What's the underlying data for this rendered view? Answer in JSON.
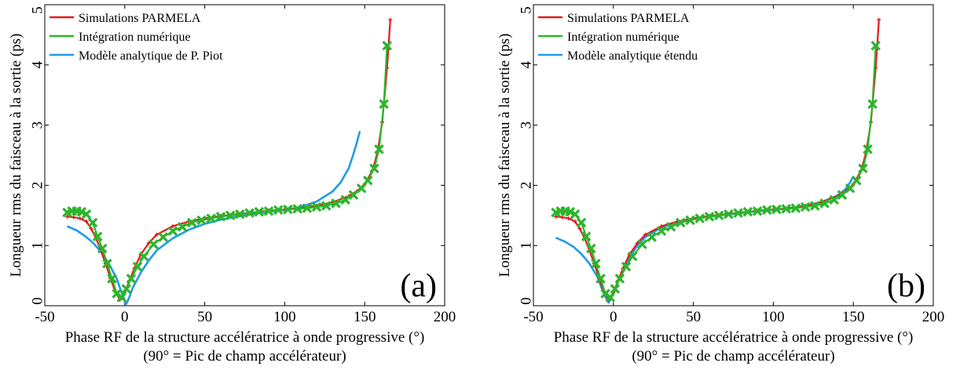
{
  "colors": {
    "parmela": "#e41a1c",
    "integration": "#2cb52c",
    "model": "#1f9be8"
  },
  "chart_data": [
    {
      "type": "line",
      "panel_label": "(a)",
      "ylabel": "Longueur rms du faisceau à la sortie (ps)",
      "xlabel": "Phase RF de la structure accélératrice à onde progressive (°)",
      "xlabel2": "(90° = Pic de champ accélérateur)",
      "xlim": [
        -50,
        200
      ],
      "ylim": [
        0,
        5
      ],
      "xticks": [
        -50,
        0,
        50,
        100,
        150,
        200
      ],
      "yticks": [
        0,
        1,
        2,
        3,
        4,
        5
      ],
      "legend_position": "top-left",
      "series": [
        {
          "name": "Simulations PARMELA",
          "color": "#e41a1c",
          "marker": "plus",
          "x": [
            -36,
            -32,
            -28,
            -24,
            -21,
            -18,
            -15,
            -12,
            -9,
            -6,
            -3,
            0,
            3,
            6,
            10,
            15,
            20,
            30,
            40,
            50,
            60,
            70,
            80,
            90,
            100,
            110,
            120,
            130,
            140,
            145,
            150,
            155,
            158,
            161,
            164,
            166
          ],
          "y": [
            1.48,
            1.47,
            1.45,
            1.4,
            1.28,
            1.12,
            0.92,
            0.7,
            0.46,
            0.24,
            0.1,
            0.22,
            0.42,
            0.62,
            0.85,
            1.04,
            1.18,
            1.32,
            1.4,
            1.45,
            1.49,
            1.52,
            1.55,
            1.58,
            1.6,
            1.62,
            1.66,
            1.72,
            1.82,
            1.9,
            2.02,
            2.25,
            2.55,
            3.05,
            3.95,
            4.75
          ]
        },
        {
          "name": "Intégration numérique",
          "color": "#2cb52c",
          "marker": "x",
          "x": [
            -36,
            -33,
            -30,
            -27,
            -24,
            -20,
            -17,
            -14,
            -11,
            -8,
            -5,
            -2,
            1,
            4,
            8,
            12,
            18,
            24,
            30,
            36,
            42,
            48,
            54,
            60,
            66,
            72,
            78,
            84,
            90,
            96,
            102,
            108,
            114,
            120,
            126,
            132,
            138,
            143,
            148,
            152,
            156,
            159,
            162,
            164
          ],
          "y": [
            1.55,
            1.57,
            1.57,
            1.56,
            1.52,
            1.38,
            1.15,
            0.95,
            0.7,
            0.45,
            0.2,
            0.14,
            0.28,
            0.45,
            0.65,
            0.82,
            1.02,
            1.14,
            1.24,
            1.31,
            1.38,
            1.42,
            1.45,
            1.48,
            1.5,
            1.52,
            1.54,
            1.56,
            1.57,
            1.59,
            1.6,
            1.61,
            1.62,
            1.64,
            1.66,
            1.7,
            1.76,
            1.84,
            1.95,
            2.08,
            2.28,
            2.6,
            3.35,
            4.32
          ]
        },
        {
          "name": "Modèle analytique de P. Piot",
          "color": "#1f9be8",
          "marker": "none",
          "x": [
            -36,
            -30,
            -25,
            -20,
            -15,
            -10,
            -5,
            -2,
            1,
            3,
            5,
            10,
            15,
            20,
            30,
            40,
            50,
            60,
            70,
            80,
            90,
            100,
            110,
            120,
            130,
            135,
            140,
            143,
            145,
            147
          ],
          "y": [
            1.32,
            1.25,
            1.16,
            1.05,
            0.9,
            0.7,
            0.45,
            0.22,
            0.03,
            0.15,
            0.3,
            0.55,
            0.75,
            0.92,
            1.12,
            1.26,
            1.36,
            1.43,
            1.48,
            1.52,
            1.56,
            1.59,
            1.64,
            1.73,
            1.9,
            2.05,
            2.28,
            2.52,
            2.7,
            2.9
          ]
        }
      ]
    },
    {
      "type": "line",
      "panel_label": "(b)",
      "ylabel": "Longueur rms du faisceau à la sortie (ps)",
      "xlabel": "Phase RF de la structure accélératrice à onde progressive (°)",
      "xlabel2": "(90° = Pic de champ accélérateur)",
      "xlim": [
        -50,
        200
      ],
      "ylim": [
        0,
        5
      ],
      "xticks": [
        -50,
        0,
        50,
        100,
        150,
        200
      ],
      "yticks": [
        0,
        1,
        2,
        3,
        4,
        5
      ],
      "legend_position": "top-left",
      "series": [
        {
          "name": "Simulations PARMELA",
          "color": "#e41a1c",
          "marker": "plus",
          "x": [
            -36,
            -32,
            -28,
            -24,
            -21,
            -18,
            -15,
            -12,
            -9,
            -6,
            -3,
            0,
            3,
            6,
            10,
            15,
            20,
            30,
            40,
            50,
            60,
            70,
            80,
            90,
            100,
            110,
            120,
            130,
            140,
            145,
            150,
            155,
            158,
            161,
            164,
            166
          ],
          "y": [
            1.48,
            1.47,
            1.45,
            1.4,
            1.28,
            1.12,
            0.92,
            0.7,
            0.46,
            0.24,
            0.1,
            0.22,
            0.42,
            0.62,
            0.85,
            1.04,
            1.18,
            1.32,
            1.4,
            1.45,
            1.49,
            1.52,
            1.55,
            1.58,
            1.6,
            1.62,
            1.66,
            1.72,
            1.82,
            1.9,
            2.02,
            2.25,
            2.55,
            3.05,
            3.95,
            4.75
          ]
        },
        {
          "name": "Intégration numérique",
          "color": "#2cb52c",
          "marker": "x",
          "x": [
            -36,
            -33,
            -30,
            -27,
            -24,
            -20,
            -17,
            -14,
            -11,
            -8,
            -5,
            -2,
            1,
            4,
            8,
            12,
            18,
            24,
            30,
            36,
            42,
            48,
            54,
            60,
            66,
            72,
            78,
            84,
            90,
            96,
            102,
            108,
            114,
            120,
            126,
            132,
            138,
            143,
            148,
            152,
            156,
            159,
            162,
            164
          ],
          "y": [
            1.55,
            1.57,
            1.57,
            1.56,
            1.52,
            1.38,
            1.15,
            0.95,
            0.7,
            0.45,
            0.2,
            0.14,
            0.28,
            0.45,
            0.65,
            0.82,
            1.02,
            1.14,
            1.24,
            1.31,
            1.38,
            1.42,
            1.45,
            1.48,
            1.5,
            1.52,
            1.54,
            1.56,
            1.57,
            1.59,
            1.6,
            1.61,
            1.62,
            1.64,
            1.66,
            1.7,
            1.76,
            1.84,
            1.95,
            2.08,
            2.28,
            2.6,
            3.35,
            4.32
          ]
        },
        {
          "name": "Modèle analytique étendu",
          "color": "#1f9be8",
          "marker": "none",
          "x": [
            -36,
            -30,
            -25,
            -20,
            -15,
            -10,
            -6,
            -3,
            0,
            3,
            6,
            10,
            15,
            20,
            30,
            40,
            50,
            60,
            70,
            80,
            90,
            100,
            110,
            120,
            130,
            140,
            145,
            148,
            150
          ],
          "y": [
            1.13,
            1.06,
            0.98,
            0.86,
            0.7,
            0.48,
            0.2,
            0.05,
            0.2,
            0.4,
            0.58,
            0.8,
            1.0,
            1.14,
            1.3,
            1.38,
            1.44,
            1.48,
            1.51,
            1.54,
            1.57,
            1.59,
            1.62,
            1.66,
            1.72,
            1.83,
            1.93,
            2.05,
            2.15
          ]
        }
      ]
    }
  ]
}
